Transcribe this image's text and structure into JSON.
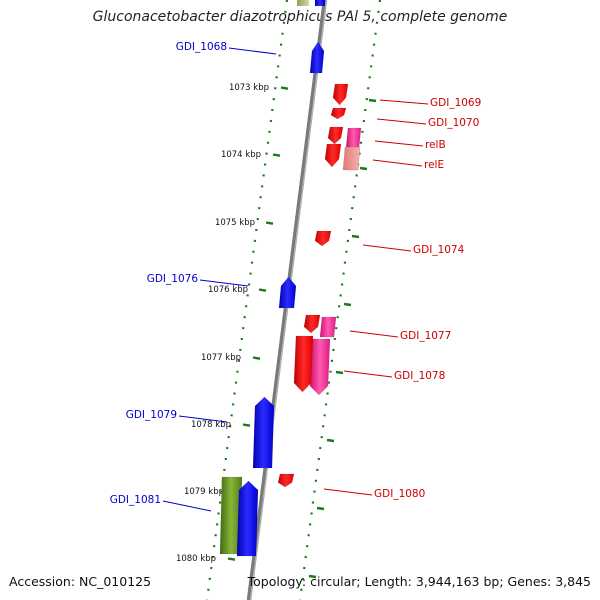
{
  "header": {
    "title": "Gluconacetobacter diazotrophicus PAl 5, complete genome"
  },
  "footer": {
    "accession": "Accession: NC_010125",
    "summary": "Topology: circular; Length: 3,944,163 bp; Genes: 3,845"
  },
  "colors": {
    "backbone": "#7a7a7a",
    "forward_label": "#0000cc",
    "reverse_label": "#cc0000",
    "tick": "#1a7a1a"
  },
  "scale": {
    "ticks": [
      "1073 kbp",
      "1074 kbp",
      "1075 kbp",
      "1076 kbp",
      "1077 kbp",
      "1078 kbp",
      "1079 kbp",
      "1080 kbp"
    ]
  },
  "genes": [
    {
      "name": "GDI_1068",
      "strand": "forward",
      "color": "#0000ff"
    },
    {
      "name": "GDI_1069",
      "strand": "reverse",
      "color": "#ff0000"
    },
    {
      "name": "GDI_1070",
      "strand": "reverse",
      "color": "#ff0000"
    },
    {
      "name": "relB",
      "strand": "reverse",
      "color": "#ff1493"
    },
    {
      "name": "relE",
      "strand": "reverse",
      "color": "#f2a0a0"
    },
    {
      "name": "GDI_1074",
      "strand": "reverse",
      "color": "#ff0000"
    },
    {
      "name": "GDI_1076",
      "strand": "forward",
      "color": "#0000ff"
    },
    {
      "name": "GDI_1077",
      "strand": "reverse",
      "color": "#ff1493"
    },
    {
      "name": "GDI_1078",
      "strand": "reverse",
      "color": "#ff1493"
    },
    {
      "name": "GDI_1079",
      "strand": "forward",
      "color": "#0000ff"
    },
    {
      "name": "GDI_1080",
      "strand": "reverse",
      "color": "#ff0000"
    },
    {
      "name": "GDI_1081",
      "strand": "forward",
      "color": "#5a8a1e"
    }
  ]
}
